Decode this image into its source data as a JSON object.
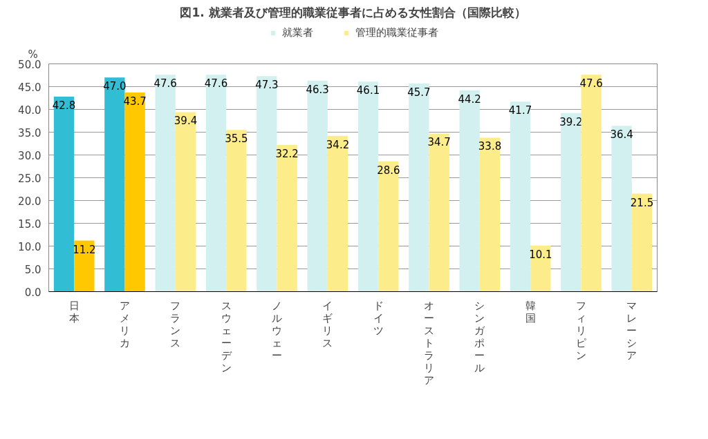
{
  "chart_data": {
    "type": "bar",
    "title": "図1. 就業者及び管理的職業従事者に占める女性割合（国際比較）",
    "ylabel": "%",
    "categories": [
      "日本",
      "アメリカ",
      "フランス",
      "スウェーデン",
      "ノルウェー",
      "イギリス",
      "ドイツ",
      "オーストラリア",
      "シンガポール",
      "韓国",
      "フィリピン",
      "マレーシア"
    ],
    "series": [
      {
        "name": "就業者",
        "color": "#d2f0f0",
        "colors": [
          "#31bdd4",
          "#31bdd4",
          "#d2f0f0",
          "#d2f0f0",
          "#d2f0f0",
          "#d2f0f0",
          "#d2f0f0",
          "#d2f0f0",
          "#d2f0f0",
          "#d2f0f0",
          "#d2f0f0",
          "#d2f0f0"
        ],
        "values": [
          42.8,
          47.0,
          47.6,
          47.6,
          47.3,
          46.3,
          46.1,
          45.7,
          44.2,
          41.7,
          39.2,
          36.4
        ],
        "value_labels": [
          "42.8",
          "47.0",
          "47.6",
          "47.6",
          "47.3",
          "46.3",
          "46.1",
          "45.7",
          "44.2",
          "41.7",
          "39.2",
          "36.4"
        ]
      },
      {
        "name": "管理的職業従事者",
        "color": "#fdec8a",
        "colors": [
          "#ffc800",
          "#ffc800",
          "#fdec8a",
          "#fdec8a",
          "#fdec8a",
          "#fdec8a",
          "#fdec8a",
          "#fdec8a",
          "#fdec8a",
          "#fdec8a",
          "#fdec8a",
          "#fdec8a"
        ],
        "values": [
          11.2,
          43.7,
          39.4,
          35.5,
          32.2,
          34.2,
          28.6,
          34.7,
          33.8,
          10.1,
          47.6,
          21.5
        ],
        "value_labels": [
          "11.2",
          "43.7",
          "39.4",
          "35.5",
          "32.2",
          "34.2",
          "28.6",
          "34.7",
          "33.8",
          "10.1",
          "47.6",
          "21.5"
        ]
      }
    ],
    "ylim": [
      0,
      50
    ],
    "yticks": [
      {
        "value": 0,
        "label": "0.0"
      },
      {
        "value": 5,
        "label": "5.0"
      },
      {
        "value": 10,
        "label": "10.0"
      },
      {
        "value": 15,
        "label": "15.0"
      },
      {
        "value": 20,
        "label": "20.0"
      },
      {
        "value": 25,
        "label": "25.0"
      },
      {
        "value": 30,
        "label": "30.0"
      },
      {
        "value": 35,
        "label": "35.0"
      },
      {
        "value": 40,
        "label": "40.0"
      },
      {
        "value": 45,
        "label": "45.0"
      },
      {
        "value": 50,
        "label": "50.0"
      }
    ],
    "grid": "y",
    "legend": "top"
  }
}
